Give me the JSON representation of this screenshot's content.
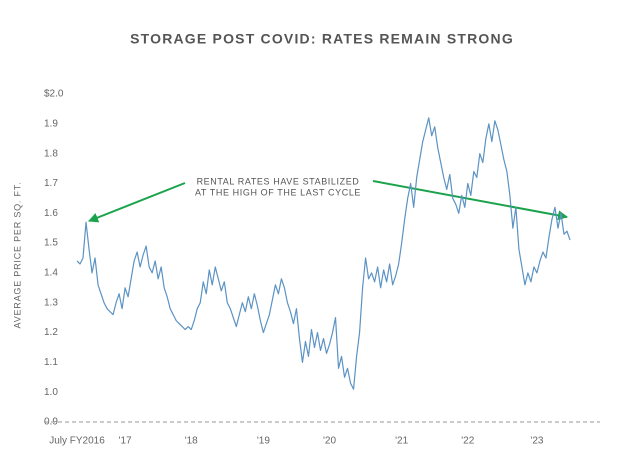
{
  "chart_data": {
    "type": "line",
    "title": "STORAGE POST COVID: RATES REMAIN STRONG",
    "y_label": "AVERAGE PRICE PER SQ. FT.",
    "annotation": [
      "RENTAL RATES HAVE STABILIZED",
      "AT THE HIGH OF THE LAST CYCLE"
    ],
    "color": "#5b93c4",
    "values": [
      1.44,
      1.43,
      1.45,
      1.57,
      1.48,
      1.4,
      1.45,
      1.36,
      1.33,
      1.3,
      1.28,
      1.27,
      1.26,
      1.3,
      1.33,
      1.28,
      1.35,
      1.32,
      1.38,
      1.44,
      1.47,
      1.42,
      1.46,
      1.49,
      1.42,
      1.4,
      1.44,
      1.38,
      1.42,
      1.35,
      1.32,
      1.28,
      1.26,
      1.24,
      1.23,
      1.22,
      1.21,
      1.22,
      1.21,
      1.24,
      1.28,
      1.3,
      1.37,
      1.33,
      1.41,
      1.36,
      1.42,
      1.38,
      1.34,
      1.37,
      1.3,
      1.28,
      1.25,
      1.22,
      1.26,
      1.3,
      1.27,
      1.32,
      1.28,
      1.33,
      1.29,
      1.24,
      1.2,
      1.23,
      1.26,
      1.31,
      1.36,
      1.33,
      1.38,
      1.35,
      1.3,
      1.27,
      1.23,
      1.28,
      1.18,
      1.1,
      1.17,
      1.12,
      1.21,
      1.15,
      1.2,
      1.14,
      1.18,
      1.13,
      1.16,
      1.2,
      1.25,
      1.08,
      1.12,
      1.05,
      1.08,
      1.03,
      1.01,
      1.12,
      1.2,
      1.35,
      1.45,
      1.38,
      1.4,
      1.37,
      1.42,
      1.35,
      1.41,
      1.37,
      1.43,
      1.36,
      1.39,
      1.43,
      1.5,
      1.58,
      1.65,
      1.7,
      1.62,
      1.72,
      1.78,
      1.84,
      1.88,
      1.92,
      1.86,
      1.89,
      1.82,
      1.77,
      1.72,
      1.68,
      1.73,
      1.65,
      1.63,
      1.6,
      1.66,
      1.62,
      1.7,
      1.66,
      1.74,
      1.72,
      1.8,
      1.77,
      1.85,
      1.9,
      1.84,
      1.91,
      1.88,
      1.83,
      1.78,
      1.74,
      1.66,
      1.55,
      1.62,
      1.48,
      1.42,
      1.36,
      1.4,
      1.37,
      1.42,
      1.4,
      1.44,
      1.47,
      1.45,
      1.52,
      1.58,
      1.62,
      1.55,
      1.6,
      1.53,
      1.54,
      1.51
    ],
    "xlim": [
      0,
      164
    ],
    "xticks": [
      {
        "value": 0,
        "label": "July FY2016"
      },
      {
        "value": 16,
        "label": "'17"
      },
      {
        "value": 38,
        "label": "'18"
      },
      {
        "value": 62,
        "label": "'19"
      },
      {
        "value": 84,
        "label": "'20"
      },
      {
        "value": 108,
        "label": "'21"
      },
      {
        "value": 130,
        "label": "'22"
      },
      {
        "value": 153,
        "label": "'23"
      }
    ],
    "ylim": [
      0.9,
      2.0
    ],
    "yticks": [
      {
        "value": 0.9,
        "label": "0.9"
      },
      {
        "value": 1,
        "label": "1.0"
      },
      1.1,
      1.2,
      1.3,
      1.4,
      1.5,
      1.6,
      1.7,
      1.8,
      1.9,
      {
        "value": 2,
        "label": "$2.0"
      }
    ],
    "grid": false
  }
}
